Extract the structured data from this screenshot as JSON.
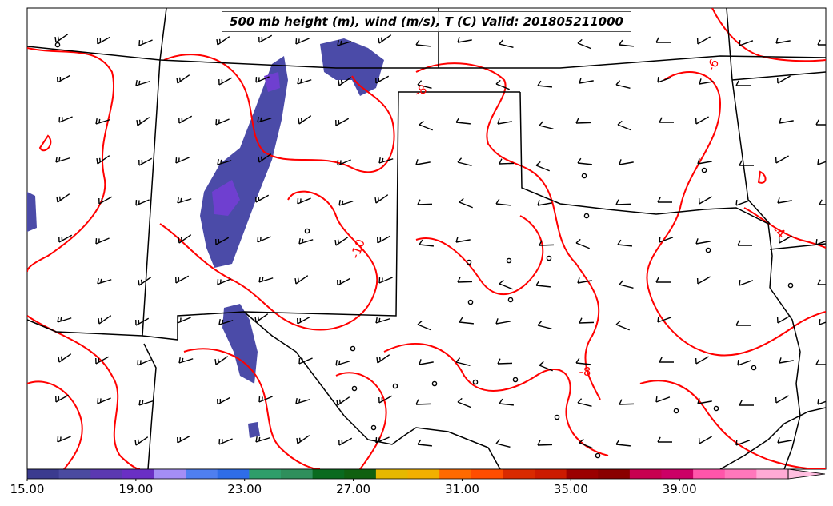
{
  "title": "500 mb height (m), wind (m/s), T (C) Valid: 201805211000",
  "colorbar": {
    "min": 15,
    "max": 43,
    "step": 2,
    "colors": [
      "#3b3b8f",
      "#4a4aa0",
      "#5b39b1",
      "#6a2fc4",
      "#a48ef5",
      "#4f7ff0",
      "#2f6de8",
      "#2e9e6a",
      "#2f8f5c",
      "#0a6a1f",
      "#106010",
      "#e6b800",
      "#f2b000",
      "#ff6a00",
      "#ff4d00",
      "#d92a00",
      "#cc1a00",
      "#9b0000",
      "#8a0000",
      "#c80050",
      "#cc0066",
      "#ff55aa",
      "#ff77bb",
      "#ffaad5"
    ],
    "tick_labels": [
      "15.00",
      "19.00",
      "23.00",
      "27.00",
      "31.00",
      "35.00",
      "39.00"
    ],
    "tick_values": [
      15,
      19,
      23,
      27,
      31,
      35,
      39
    ]
  },
  "temperature_contours": {
    "color": "#ff0000",
    "labels": [
      "-6",
      "-8",
      "-10",
      "-4",
      "-8"
    ]
  },
  "wind_barbs_color": "#000000",
  "boundaries_color": "#000000",
  "shading_color": "#4b4ba8",
  "shading_highlight": "#6f3fd0"
}
